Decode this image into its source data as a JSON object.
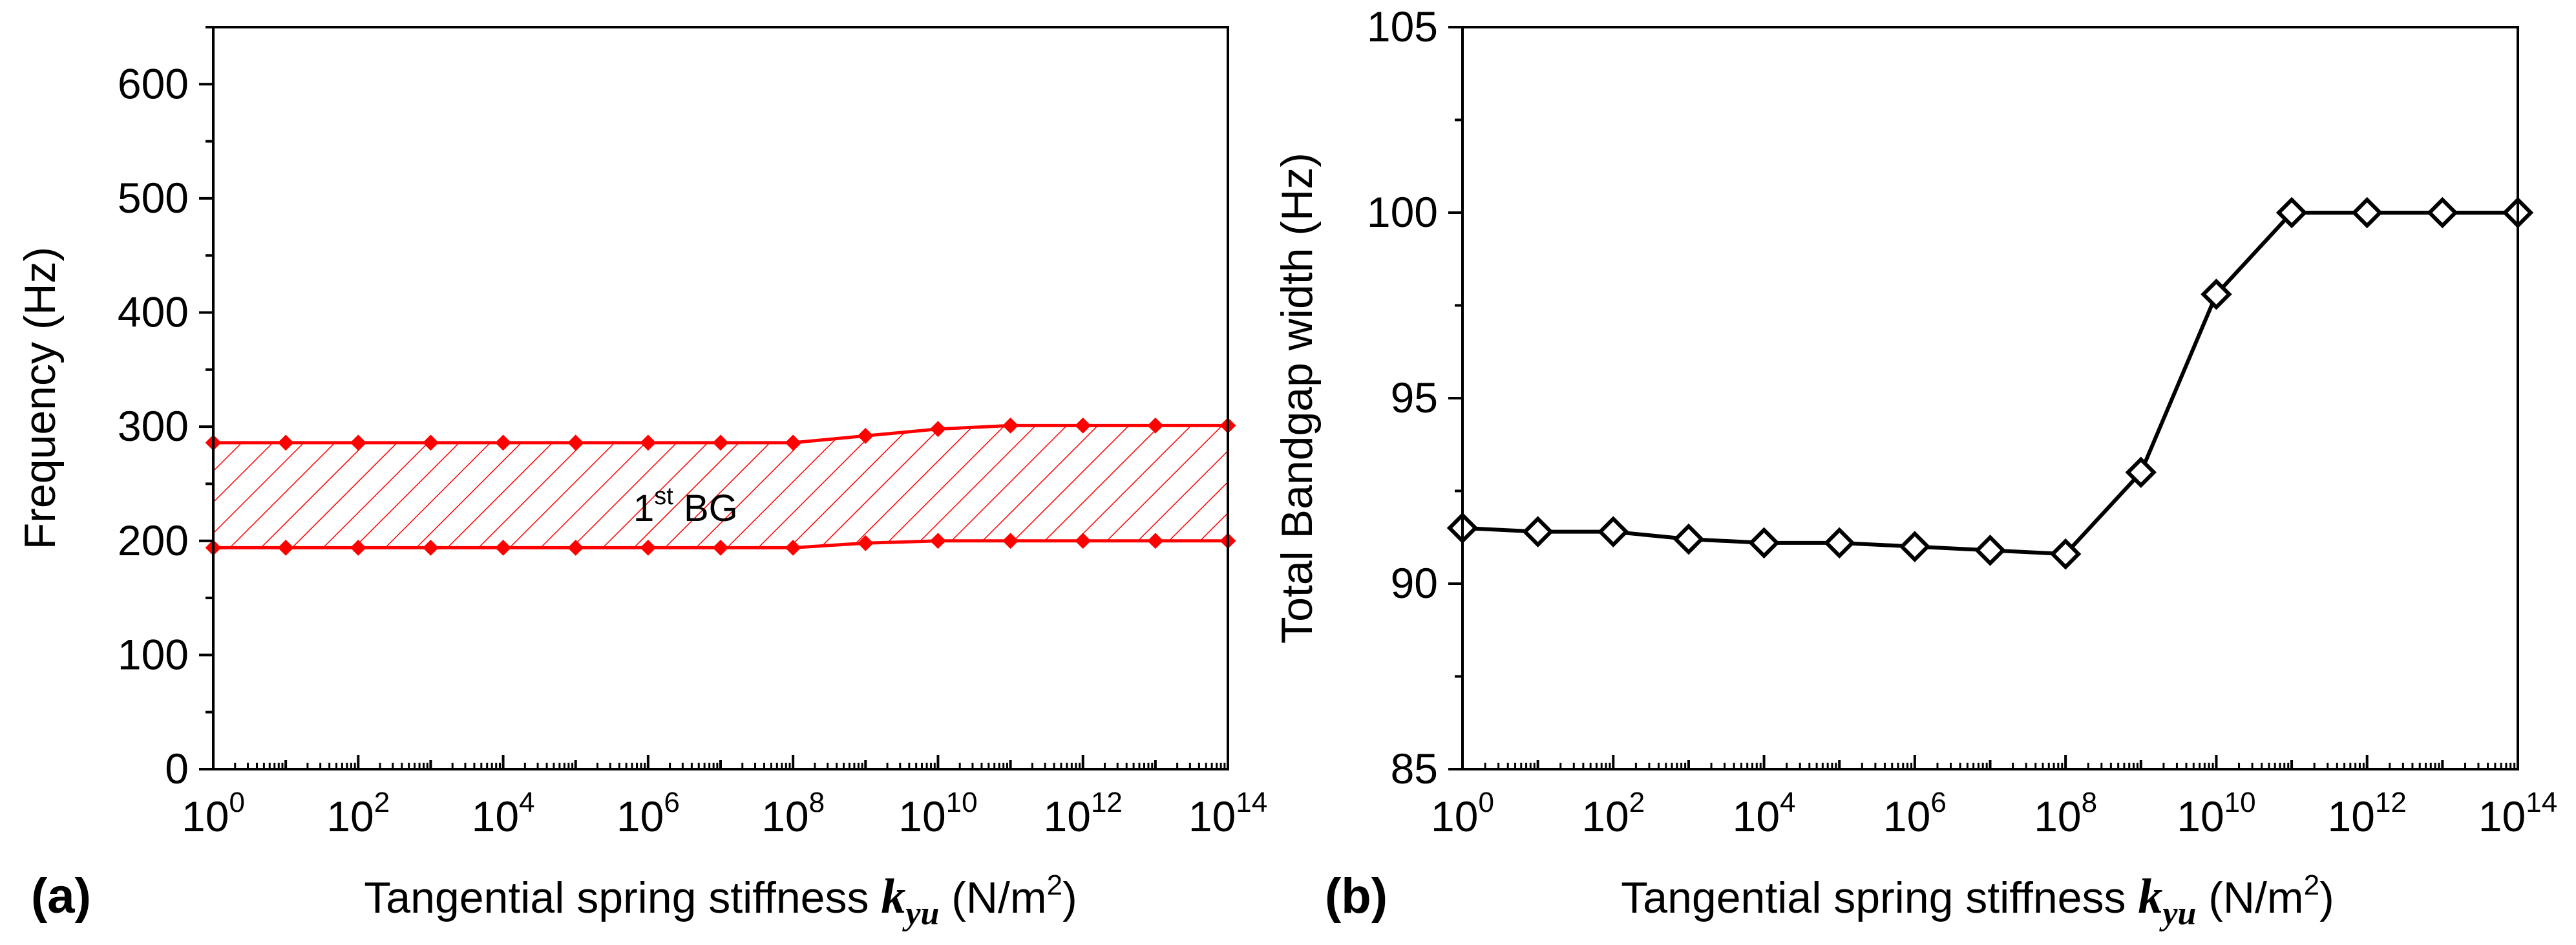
{
  "colors": {
    "band": "#ff0000",
    "line_b": "#000000",
    "axis": "#000000"
  },
  "chart_data": [
    {
      "panel_label": "(a)",
      "type": "area",
      "x_exponents": [
        0,
        1,
        2,
        3,
        4,
        5,
        6,
        7,
        8,
        9,
        10,
        11,
        12,
        13,
        14
      ],
      "x_ticks": [
        {
          "base": "10",
          "exp": "0"
        },
        {
          "base": "10",
          "exp": "2"
        },
        {
          "base": "10",
          "exp": "4"
        },
        {
          "base": "10",
          "exp": "6"
        },
        {
          "base": "10",
          "exp": "8"
        },
        {
          "base": "10",
          "exp": "10"
        },
        {
          "base": "10",
          "exp": "12"
        },
        {
          "base": "10",
          "exp": "14"
        }
      ],
      "series": [
        {
          "name": "1st BG upper edge",
          "values": [
            286,
            286,
            286,
            286,
            286,
            286,
            286,
            286,
            286,
            292,
            298,
            301,
            301,
            301,
            301
          ]
        },
        {
          "name": "1st BG lower edge",
          "values": [
            194,
            194,
            194,
            194,
            194,
            194,
            194,
            194,
            194,
            198,
            200,
            200,
            200,
            200,
            200
          ]
        }
      ],
      "band_label": {
        "main": "1",
        "sup": "st",
        "rest": " BG"
      },
      "ylim": [
        0,
        650
      ],
      "y_ticks": [
        "0",
        "100",
        "200",
        "300",
        "400",
        "500",
        "600"
      ],
      "ylabel": "Frequency (Hz)",
      "xlabel": {
        "prefix": "Tangential  spring stiffness ",
        "k": "k",
        "sub": "yu",
        "units": " (N/m",
        "sup": "2",
        "close": ")"
      }
    },
    {
      "panel_label": "(b)",
      "type": "line",
      "x_exponents": [
        0,
        1,
        2,
        3,
        4,
        5,
        6,
        7,
        8,
        9,
        10,
        11,
        12,
        13,
        14
      ],
      "x_ticks": [
        {
          "base": "10",
          "exp": "0"
        },
        {
          "base": "10",
          "exp": "2"
        },
        {
          "base": "10",
          "exp": "4"
        },
        {
          "base": "10",
          "exp": "6"
        },
        {
          "base": "10",
          "exp": "8"
        },
        {
          "base": "10",
          "exp": "10"
        },
        {
          "base": "10",
          "exp": "12"
        },
        {
          "base": "10",
          "exp": "14"
        }
      ],
      "series": [
        {
          "name": "Total Bandgap width",
          "values": [
            91.5,
            91.4,
            91.4,
            91.2,
            91.1,
            91.1,
            91.0,
            90.9,
            90.8,
            93.0,
            97.8,
            100.0,
            100.0,
            100.0,
            100.0
          ]
        }
      ],
      "ylim": [
        85,
        105
      ],
      "y_ticks": [
        "85",
        "90",
        "95",
        "100",
        "105"
      ],
      "ylabel": "Total Bandgap width (Hz)",
      "xlabel": {
        "prefix": "Tangential  spring stiffness ",
        "k": "k",
        "sub": "yu",
        "units": " (N/m",
        "sup": "2",
        "close": ")"
      }
    }
  ]
}
